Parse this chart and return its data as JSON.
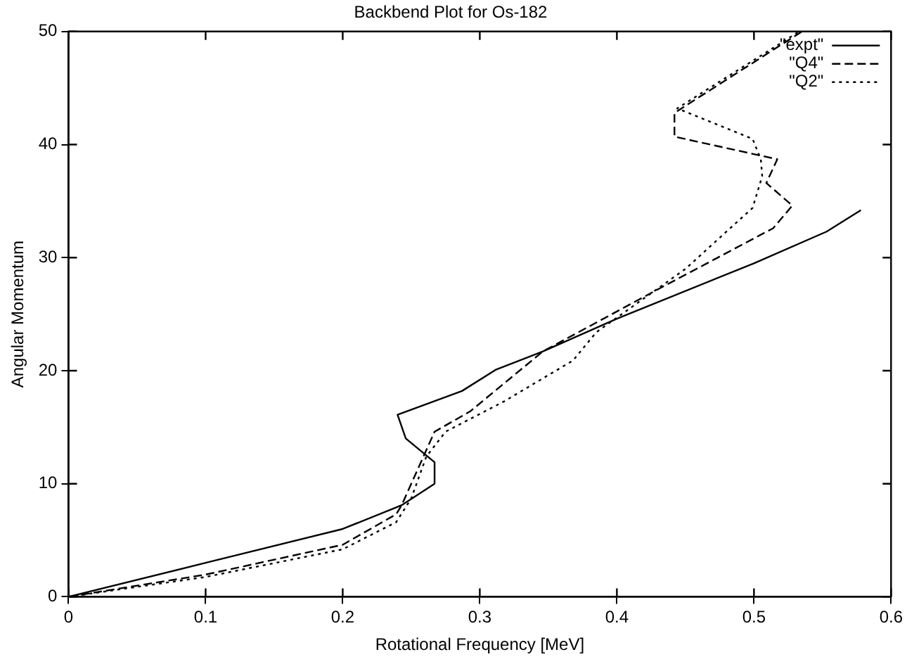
{
  "chart_data": {
    "type": "line",
    "title": "Backbend Plot for Os-182",
    "xlabel": "Rotational Frequency [MeV]",
    "ylabel": "Angular Momentum",
    "xlim": [
      0,
      0.6
    ],
    "xticks": [
      0,
      0.1,
      0.2,
      0.3,
      0.4,
      0.5,
      0.6
    ],
    "ylim": [
      0,
      50
    ],
    "yticks": [
      0,
      10,
      20,
      30,
      40,
      50
    ],
    "grid": false,
    "legend": "top right",
    "marker": "none",
    "series": [
      {
        "name": "\"expt\"",
        "color": "#000000",
        "line_style": "solid",
        "x": [
          0,
          0.1,
          0.2,
          0.239,
          0.243,
          0.267,
          0.267,
          0.246,
          0.24,
          0.287,
          0.312,
          0.346,
          0.4,
          0.5,
          0.553,
          0.578
        ],
        "values": [
          0,
          3,
          6,
          7.9,
          8.1,
          10,
          11.9,
          14,
          16.1,
          18.2,
          20.1,
          21.7,
          24.6,
          29.5,
          32.3,
          34.2
        ]
      },
      {
        "name": "\"Q4\"",
        "color": "#000000",
        "line_style": "dashed",
        "x": [
          0,
          0.1,
          0.2,
          0.239,
          0.243,
          0.267,
          0.293,
          0.346,
          0.43,
          0.514,
          0.528,
          0.509,
          0.517,
          0.442,
          0.442,
          0.535
        ],
        "values": [
          0,
          1.96,
          4.6,
          7.3,
          8.1,
          14.6,
          16.4,
          21.7,
          27.2,
          32.6,
          34.6,
          36.6,
          38.7,
          40.7,
          42.8,
          50
        ]
      },
      {
        "name": "\"Q2\"",
        "color": "#000000",
        "line_style": "dotted",
        "x": [
          0,
          0.1,
          0.2,
          0.239,
          0.25,
          0.261,
          0.275,
          0.318,
          0.368,
          0.385,
          0.45,
          0.499,
          0.506,
          0.505,
          0.499,
          0.444,
          0.533
        ],
        "values": [
          0,
          1.75,
          4.2,
          6.6,
          8.7,
          12.4,
          14.6,
          17.3,
          20.9,
          23.4,
          29,
          34.4,
          37.2,
          38.7,
          40.5,
          43.2,
          50
        ]
      }
    ]
  }
}
